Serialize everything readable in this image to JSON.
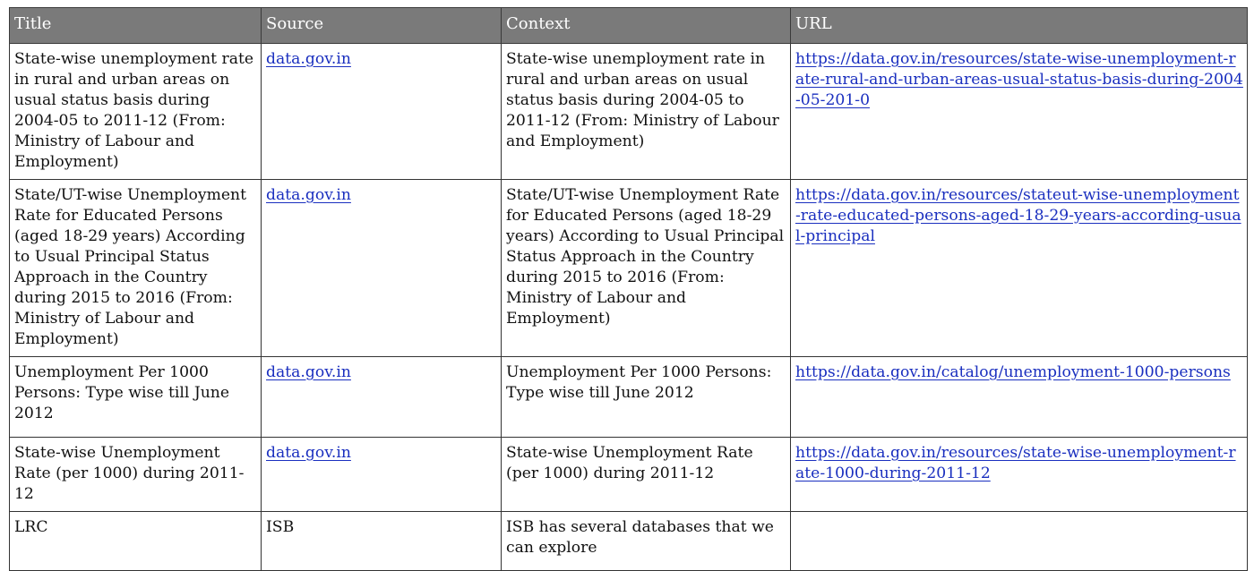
{
  "table": {
    "columns": [
      "Title",
      "Source",
      "Context",
      "URL"
    ],
    "rows": [
      {
        "title": "State-wise unemployment rate in rural and urban areas on usual status basis during 2004-05 to 2011-12 (From: Ministry of Labour and Employment)",
        "source": "data.gov.in",
        "source_is_link": true,
        "context": "State-wise unemployment rate in rural and urban areas on usual status basis during 2004-05 to 2011-12 (From: Ministry of Labour and Employment)",
        "url": "https://data.gov.in/resources/state-wise-unemployment-rate-rural-and-urban-areas-usual-status-basis-during-2004-05-201-0"
      },
      {
        "title": "State/UT-wise Unemployment Rate for Educated Persons (aged 18-29 years) According to Usual Principal Status Approach in the Country during 2015 to 2016 (From: Ministry of Labour and Employment)",
        "source": "data.gov.in",
        "source_is_link": true,
        "context": "State/UT-wise Unemployment Rate for Educated Persons (aged 18-29 years) According to Usual Principal Status Approach in the Country during 2015 to 2016 (From: Ministry of Labour and Employment)",
        "url": "https://data.gov.in/resources/stateut-wise-unemployment-rate-educated-persons-aged-18-29-years-according-usual-principal"
      },
      {
        "title": "Unemployment Per 1000 Persons: Type wise till June 2012",
        "source": "data.gov.in",
        "source_is_link": true,
        "context": "Unemployment Per 1000 Persons: Type wise till June 2012",
        "url": "https://data.gov.in/catalog/unemployment-1000-persons"
      },
      {
        "title": "State-wise Unemployment Rate (per 1000) during 2011-12",
        "source": "data.gov.in",
        "source_is_link": true,
        "context": "State-wise Unemployment Rate (per 1000) during 2011-12",
        "url": "https://data.gov.in/resources/state-wise-unemployment-rate-1000-during-2011-12"
      },
      {
        "title": "LRC",
        "source": "ISB",
        "source_is_link": false,
        "context": "ISB has several databases that we can explore",
        "url": ""
      }
    ]
  },
  "colors": {
    "header_bg": "#7a7a7a",
    "header_text": "#ffffff",
    "link": "#1a2fbf",
    "border": "#333333",
    "text": "#111111"
  }
}
